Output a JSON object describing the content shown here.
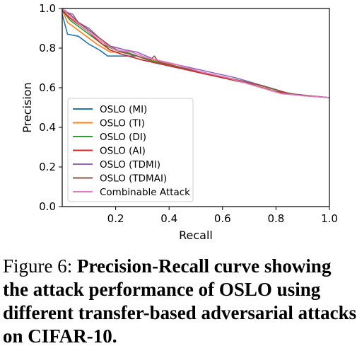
{
  "chart_data": {
    "type": "line",
    "xlabel": "Recall",
    "ylabel": "Precision",
    "xlim": [
      0.0,
      1.0
    ],
    "ylim": [
      0.0,
      1.0
    ],
    "xticks": [
      "0.2",
      "0.4",
      "0.6",
      "0.8",
      "1.0"
    ],
    "yticks": [
      "0.0",
      "0.2",
      "0.4",
      "0.6",
      "0.8",
      "1.0"
    ],
    "xtick_values": [
      0.2,
      0.4,
      0.6,
      0.8,
      1.0
    ],
    "ytick_values": [
      0.0,
      0.2,
      0.4,
      0.6,
      0.8,
      1.0
    ],
    "grid": false,
    "legend_position": "lower-left",
    "series": [
      {
        "name": "OSLO (MI)",
        "color": "#1f77b4",
        "points": [
          [
            0.0,
            0.97
          ],
          [
            0.02,
            0.87
          ],
          [
            0.06,
            0.86
          ],
          [
            0.1,
            0.82
          ],
          [
            0.14,
            0.79
          ],
          [
            0.17,
            0.76
          ],
          [
            0.22,
            0.76
          ],
          [
            0.28,
            0.76
          ],
          [
            0.35,
            0.73
          ],
          [
            0.45,
            0.7
          ],
          [
            0.55,
            0.67
          ],
          [
            0.65,
            0.64
          ],
          [
            0.75,
            0.61
          ],
          [
            0.85,
            0.57
          ],
          [
            0.92,
            0.56
          ],
          [
            1.0,
            0.55
          ]
        ]
      },
      {
        "name": "OSLO (TI)",
        "color": "#ff7f0e",
        "points": [
          [
            0.0,
            0.99
          ],
          [
            0.02,
            0.93
          ],
          [
            0.05,
            0.9
          ],
          [
            0.09,
            0.86
          ],
          [
            0.13,
            0.82
          ],
          [
            0.18,
            0.78
          ],
          [
            0.24,
            0.78
          ],
          [
            0.3,
            0.75
          ],
          [
            0.4,
            0.72
          ],
          [
            0.5,
            0.68
          ],
          [
            0.6,
            0.65
          ],
          [
            0.7,
            0.62
          ],
          [
            0.8,
            0.58
          ],
          [
            0.9,
            0.56
          ],
          [
            1.0,
            0.55
          ]
        ]
      },
      {
        "name": "OSLO (DI)",
        "color": "#2ca02c",
        "points": [
          [
            0.0,
            0.99
          ],
          [
            0.03,
            0.94
          ],
          [
            0.07,
            0.9
          ],
          [
            0.11,
            0.86
          ],
          [
            0.15,
            0.82
          ],
          [
            0.2,
            0.79
          ],
          [
            0.26,
            0.77
          ],
          [
            0.32,
            0.74
          ],
          [
            0.42,
            0.71
          ],
          [
            0.52,
            0.68
          ],
          [
            0.62,
            0.65
          ],
          [
            0.72,
            0.62
          ],
          [
            0.82,
            0.58
          ],
          [
            0.9,
            0.56
          ],
          [
            1.0,
            0.55
          ]
        ]
      },
      {
        "name": "OSLO (AI)",
        "color": "#d62728",
        "points": [
          [
            0.0,
            0.99
          ],
          [
            0.03,
            0.95
          ],
          [
            0.06,
            0.92
          ],
          [
            0.1,
            0.88
          ],
          [
            0.14,
            0.83
          ],
          [
            0.18,
            0.79
          ],
          [
            0.22,
            0.77
          ],
          [
            0.3,
            0.74
          ],
          [
            0.4,
            0.71
          ],
          [
            0.5,
            0.68
          ],
          [
            0.6,
            0.65
          ],
          [
            0.7,
            0.62
          ],
          [
            0.8,
            0.58
          ],
          [
            0.9,
            0.56
          ],
          [
            1.0,
            0.55
          ]
        ]
      },
      {
        "name": "OSLO (TDMI)",
        "color": "#9467bd",
        "points": [
          [
            0.0,
            1.0
          ],
          [
            0.02,
            0.98
          ],
          [
            0.04,
            0.97
          ],
          [
            0.06,
            0.93
          ],
          [
            0.1,
            0.9
          ],
          [
            0.14,
            0.85
          ],
          [
            0.18,
            0.81
          ],
          [
            0.24,
            0.79
          ],
          [
            0.28,
            0.78
          ],
          [
            0.35,
            0.74
          ],
          [
            0.45,
            0.71
          ],
          [
            0.55,
            0.68
          ],
          [
            0.65,
            0.65
          ],
          [
            0.75,
            0.61
          ],
          [
            0.85,
            0.57
          ],
          [
            0.92,
            0.56
          ],
          [
            1.0,
            0.55
          ]
        ]
      },
      {
        "name": "OSLO (TDMAI)",
        "color": "#8c564b",
        "points": [
          [
            0.0,
            0.99
          ],
          [
            0.03,
            0.97
          ],
          [
            0.06,
            0.93
          ],
          [
            0.1,
            0.89
          ],
          [
            0.14,
            0.85
          ],
          [
            0.18,
            0.81
          ],
          [
            0.22,
            0.78
          ],
          [
            0.28,
            0.76
          ],
          [
            0.33,
            0.74
          ],
          [
            0.345,
            0.76
          ],
          [
            0.36,
            0.73
          ],
          [
            0.45,
            0.7
          ],
          [
            0.55,
            0.67
          ],
          [
            0.65,
            0.64
          ],
          [
            0.75,
            0.61
          ],
          [
            0.85,
            0.57
          ],
          [
            0.92,
            0.56
          ],
          [
            1.0,
            0.55
          ]
        ]
      },
      {
        "name": "Combinable Attack",
        "color": "#e377c2",
        "points": [
          [
            0.0,
            1.0
          ],
          [
            0.03,
            0.96
          ],
          [
            0.07,
            0.91
          ],
          [
            0.11,
            0.87
          ],
          [
            0.15,
            0.83
          ],
          [
            0.2,
            0.79
          ],
          [
            0.26,
            0.78
          ],
          [
            0.32,
            0.75
          ],
          [
            0.42,
            0.72
          ],
          [
            0.52,
            0.68
          ],
          [
            0.62,
            0.65
          ],
          [
            0.72,
            0.61
          ],
          [
            0.82,
            0.57
          ],
          [
            0.9,
            0.56
          ],
          [
            1.0,
            0.55
          ]
        ]
      }
    ]
  },
  "caption": {
    "prefix": "Figure 6:",
    "text": "Precision-Recall curve showing the attack performance of OSLO using different transfer-based adversarial attacks on CIFAR-10."
  }
}
